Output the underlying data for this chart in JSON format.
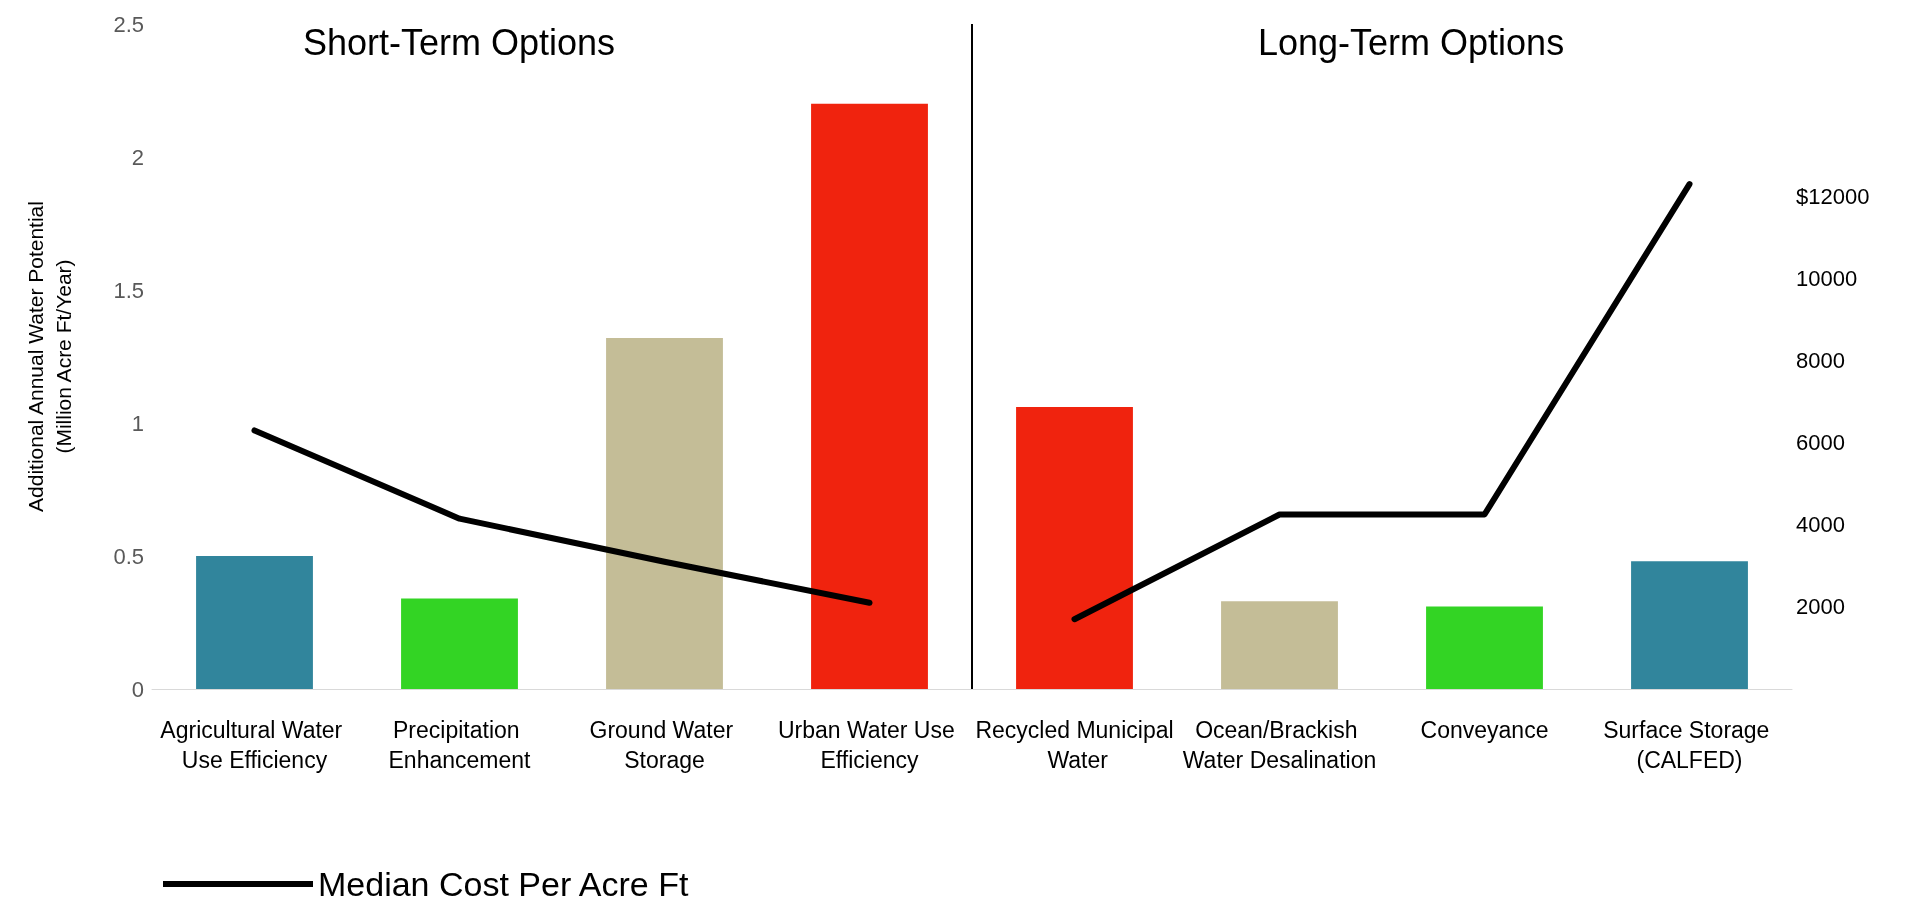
{
  "chart_data": {
    "type": "bar",
    "categories": [
      "Agricultural Water Use Efficiency",
      "Precipitation Enhancement",
      "Ground Water Storage",
      "Urban Water Use Efficiency",
      "Recycled Municipal Water",
      "Ocean/Brackish Water Desalination",
      "Conveyance",
      "Surface Storage (CALFED)"
    ],
    "ylabel": "Additional Annual Water Potential\n(Million Acre Ft/Year)",
    "annotations": [
      "Short-Term Options",
      "Long-Term Options"
    ],
    "series": [
      {
        "colors": [
          "#31859c",
          "#33d424",
          "#c4bd97",
          "#f0230e",
          "#f0230e",
          "#c4bd97",
          "#33d424",
          "#31859c"
        ],
        "values": [
          0.5,
          0.34,
          1.32,
          2.2,
          1.06,
          0.33,
          0.31,
          0.48
        ]
      },
      {
        "type": "line",
        "name": "Median Cost Per Acre Ft",
        "axis": "y2",
        "color": "#000000",
        "values": [
          6300,
          4150,
          3100,
          2100,
          null,
          null,
          null,
          null
        ]
      },
      {
        "type": "line",
        "axis": "y2",
        "color": "#000000",
        "values": [
          null,
          null,
          null,
          null,
          1700,
          4250,
          4250,
          12300
        ]
      }
    ],
    "ylim": [
      0,
      2.5
    ],
    "yticks": [
      0,
      0.5,
      1,
      1.5,
      2,
      2.5
    ],
    "y2lim": [
      0,
      16200
    ],
    "y2ticks": [
      2000,
      4000,
      6000,
      8000,
      10000,
      {
        "value": 12000,
        "label": "$12000"
      }
    ],
    "grid": false,
    "legend": "bottom left",
    "marker": "none",
    "line_style": "solid"
  }
}
